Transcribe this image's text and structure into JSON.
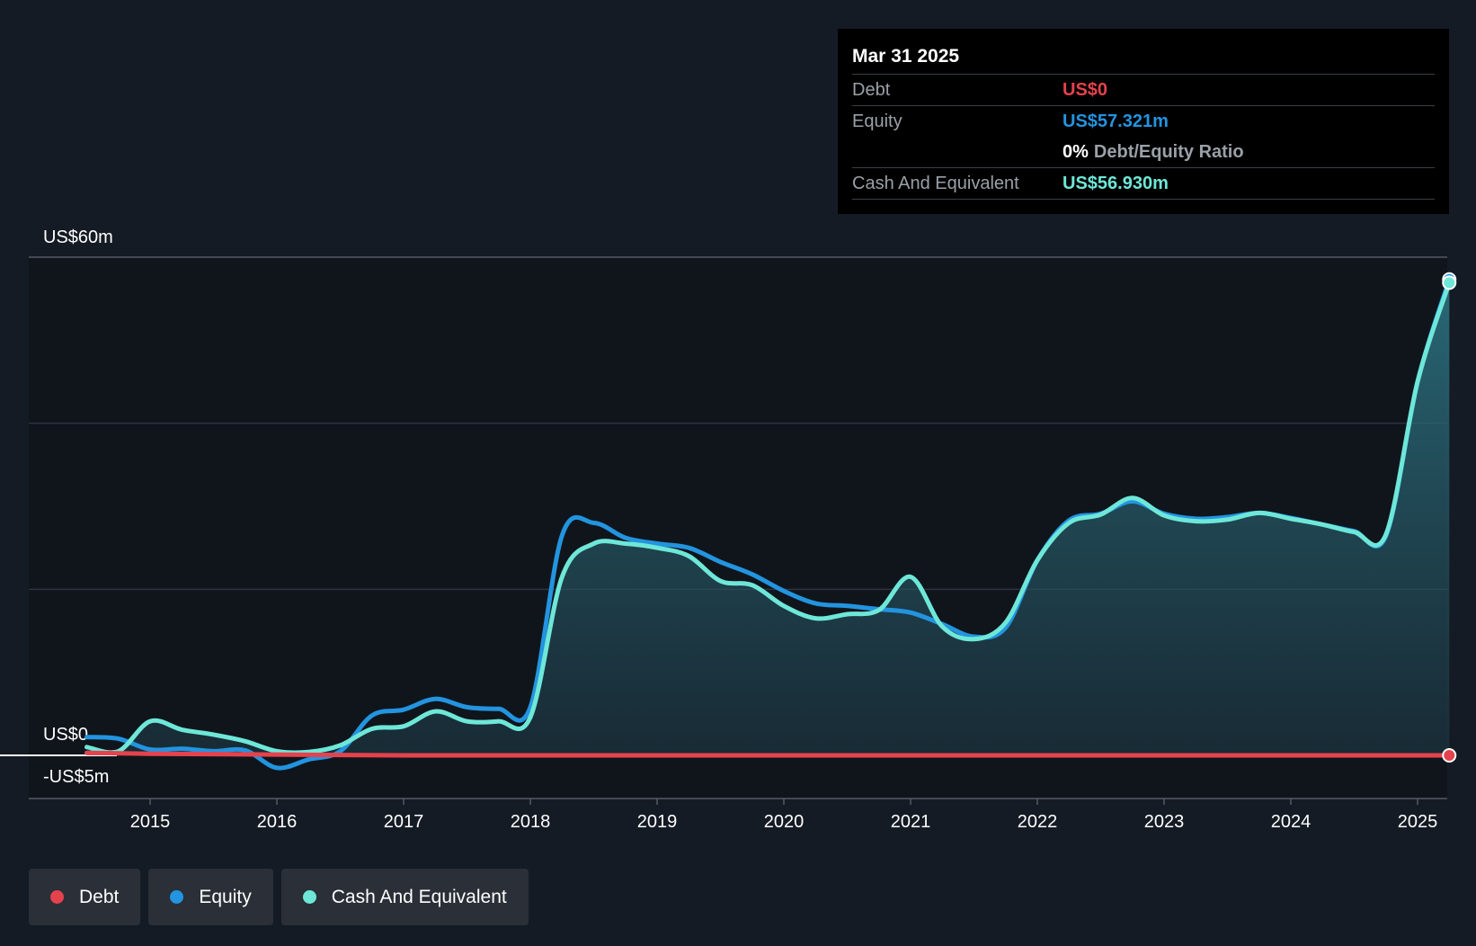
{
  "tooltip": {
    "date": "Mar 31 2025",
    "debt_label": "Debt",
    "debt_value": "US$0",
    "equity_label": "Equity",
    "equity_value": "US$57.321m",
    "ratio_value": "0%",
    "ratio_label": "Debt/Equity Ratio",
    "cash_label": "Cash And Equivalent",
    "cash_value": "US$56.930m"
  },
  "legend": [
    {
      "label": "Debt",
      "color": "#e5424d"
    },
    {
      "label": "Equity",
      "color": "#2394df"
    },
    {
      "label": "Cash And Equivalent",
      "color": "#6ee7d8"
    }
  ],
  "colors": {
    "background": "#151b24",
    "debt": "#e5424d",
    "equity": "#2394df",
    "cash": "#6ee7d8"
  },
  "chart_data": {
    "type": "line",
    "title": "",
    "xlabel": "",
    "ylabel": "",
    "x_ticks": [
      "2015",
      "2016",
      "2017",
      "2018",
      "2019",
      "2020",
      "2021",
      "2022",
      "2023",
      "2024",
      "2025"
    ],
    "y_tick_labels": [
      {
        "value": 60,
        "label": "US$60m"
      },
      {
        "value": 0,
        "label": "US$0"
      },
      {
        "value": -5,
        "label": "-US$5m"
      }
    ],
    "ylim": [
      -5,
      60
    ],
    "xlim": [
      2014.5,
      2025.25
    ],
    "grid": true,
    "legend_position": "bottom-left",
    "series": [
      {
        "name": "Debt",
        "color": "#e5424d",
        "points": [
          [
            2014.5,
            0.3
          ],
          [
            2015.0,
            0.2
          ],
          [
            2016.0,
            0.1
          ],
          [
            2017.0,
            0.0
          ],
          [
            2018.0,
            0.0
          ],
          [
            2019.0,
            0.0
          ],
          [
            2020.0,
            0.0
          ],
          [
            2021.0,
            0.0
          ],
          [
            2022.0,
            0.0
          ],
          [
            2023.0,
            0.0
          ],
          [
            2024.0,
            0.0
          ],
          [
            2025.25,
            0.0
          ]
        ]
      },
      {
        "name": "Equity",
        "color": "#2394df",
        "points": [
          [
            2014.5,
            2.2
          ],
          [
            2014.75,
            2.0
          ],
          [
            2015.0,
            0.7
          ],
          [
            2015.25,
            0.8
          ],
          [
            2015.5,
            0.5
          ],
          [
            2015.75,
            0.6
          ],
          [
            2016.0,
            -1.5
          ],
          [
            2016.25,
            -0.5
          ],
          [
            2016.5,
            0.5
          ],
          [
            2016.75,
            4.8
          ],
          [
            2017.0,
            5.5
          ],
          [
            2017.25,
            6.8
          ],
          [
            2017.5,
            5.8
          ],
          [
            2017.75,
            5.6
          ],
          [
            2018.0,
            5.8
          ],
          [
            2018.25,
            26.5
          ],
          [
            2018.5,
            28.0
          ],
          [
            2018.75,
            26.2
          ],
          [
            2019.0,
            25.5
          ],
          [
            2019.25,
            25.0
          ],
          [
            2019.5,
            23.3
          ],
          [
            2019.75,
            21.8
          ],
          [
            2020.0,
            19.8
          ],
          [
            2020.25,
            18.3
          ],
          [
            2020.5,
            18.0
          ],
          [
            2020.75,
            17.6
          ],
          [
            2021.0,
            17.2
          ],
          [
            2021.25,
            15.8
          ],
          [
            2021.5,
            14.3
          ],
          [
            2021.75,
            15.4
          ],
          [
            2022.0,
            23.5
          ],
          [
            2022.25,
            28.3
          ],
          [
            2022.5,
            29.1
          ],
          [
            2022.75,
            30.6
          ],
          [
            2023.0,
            29.1
          ],
          [
            2023.25,
            28.5
          ],
          [
            2023.5,
            28.7
          ],
          [
            2023.75,
            29.2
          ],
          [
            2024.0,
            28.6
          ],
          [
            2024.25,
            27.8
          ],
          [
            2024.5,
            27.0
          ],
          [
            2024.75,
            26.4
          ],
          [
            2025.0,
            45.0
          ],
          [
            2025.25,
            57.321
          ]
        ]
      },
      {
        "name": "Cash And Equivalent",
        "color": "#6ee7d8",
        "points": [
          [
            2014.5,
            1.0
          ],
          [
            2014.75,
            0.5
          ],
          [
            2015.0,
            4.1
          ],
          [
            2015.25,
            3.1
          ],
          [
            2015.5,
            2.5
          ],
          [
            2015.75,
            1.7
          ],
          [
            2016.0,
            0.5
          ],
          [
            2016.25,
            0.4
          ],
          [
            2016.5,
            1.2
          ],
          [
            2016.75,
            3.2
          ],
          [
            2017.0,
            3.5
          ],
          [
            2017.25,
            5.3
          ],
          [
            2017.5,
            4.1
          ],
          [
            2017.75,
            4.1
          ],
          [
            2018.0,
            4.6
          ],
          [
            2018.25,
            21.5
          ],
          [
            2018.5,
            25.5
          ],
          [
            2018.75,
            25.5
          ],
          [
            2019.0,
            25.0
          ],
          [
            2019.25,
            24.0
          ],
          [
            2019.5,
            21.0
          ],
          [
            2019.75,
            20.5
          ],
          [
            2020.0,
            18.0
          ],
          [
            2020.25,
            16.5
          ],
          [
            2020.5,
            17.0
          ],
          [
            2020.75,
            17.5
          ],
          [
            2021.0,
            21.5
          ],
          [
            2021.25,
            15.5
          ],
          [
            2021.5,
            14.0
          ],
          [
            2021.75,
            16.0
          ],
          [
            2022.0,
            23.5
          ],
          [
            2022.25,
            28.0
          ],
          [
            2022.5,
            29.0
          ],
          [
            2022.75,
            31.0
          ],
          [
            2023.0,
            28.9
          ],
          [
            2023.25,
            28.2
          ],
          [
            2023.5,
            28.4
          ],
          [
            2023.75,
            29.2
          ],
          [
            2024.0,
            28.5
          ],
          [
            2024.25,
            27.8
          ],
          [
            2024.5,
            26.9
          ],
          [
            2024.75,
            26.6
          ],
          [
            2025.0,
            45.0
          ],
          [
            2025.25,
            56.93
          ]
        ]
      }
    ],
    "highlight": {
      "x": "Mar 31 2025",
      "debt": 0,
      "equity": 57.321,
      "cash": 56.93
    }
  }
}
